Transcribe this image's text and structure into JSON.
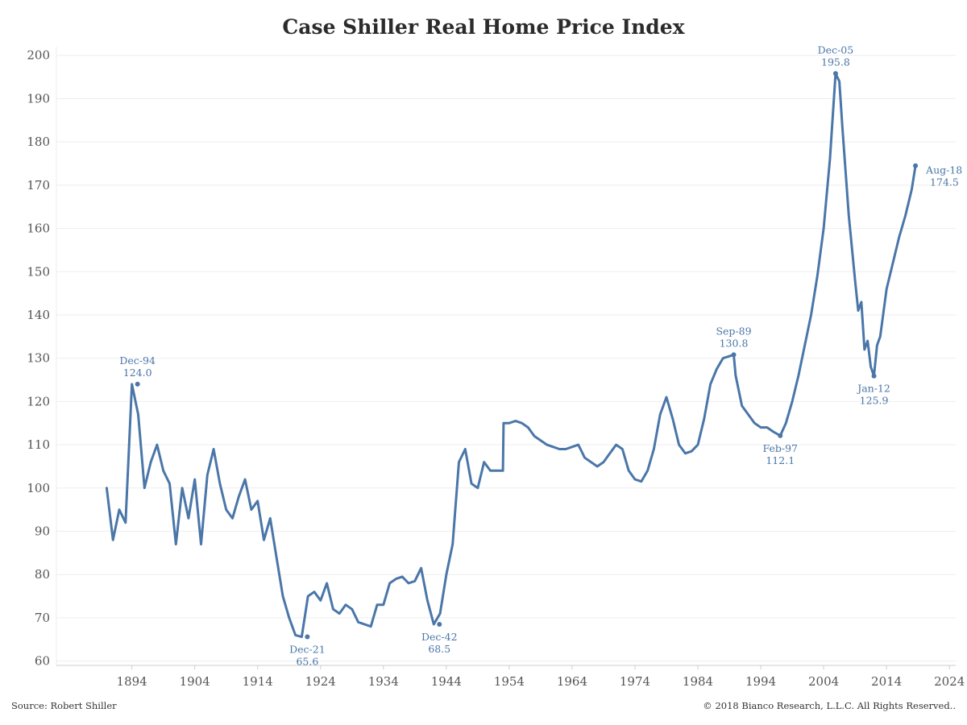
{
  "title": "Case Shiller Real Home Price Index",
  "source": "Source: Robert Shiller",
  "copyright": "© 2018 Bianco Research, L.L.C. All Rights Reserved..",
  "colors": {
    "line": "#4a76a8",
    "grid": "#eeeeee",
    "text": "#555555"
  },
  "chart_data": {
    "type": "line",
    "title": "Case Shiller Real Home Price Index",
    "xlabel": "",
    "ylabel": "",
    "xlim": [
      1882,
      2025
    ],
    "ylim": [
      59,
      202
    ],
    "grid": true,
    "legend": "none",
    "x_ticks": [
      1894,
      1904,
      1914,
      1924,
      1934,
      1944,
      1954,
      1964,
      1974,
      1984,
      1994,
      2004,
      2014,
      2024
    ],
    "y_ticks": [
      60,
      70,
      80,
      90,
      100,
      110,
      120,
      130,
      140,
      150,
      160,
      170,
      180,
      190,
      200
    ],
    "series": [
      {
        "x": [
          1890,
          1891,
          1892,
          1893,
          1894,
          1895,
          1896,
          1897,
          1898,
          1899,
          1900,
          1901,
          1902,
          1903,
          1904,
          1905,
          1906,
          1907,
          1908,
          1909,
          1910,
          1911,
          1912,
          1913,
          1914,
          1915,
          1916,
          1917,
          1918,
          1919,
          1920,
          1921,
          1922,
          1923,
          1924,
          1925,
          1926,
          1927,
          1928,
          1929,
          1930,
          1931,
          1932,
          1933,
          1934,
          1935,
          1936,
          1937,
          1938,
          1939,
          1940,
          1941,
          1942,
          1943,
          1944,
          1945,
          1946,
          1947,
          1948,
          1949,
          1950,
          1951,
          1952,
          1953,
          1953.1,
          1954,
          1955,
          1956,
          1957,
          1958,
          1959,
          1960,
          1961,
          1962,
          1963,
          1964,
          1965,
          1966,
          1967,
          1968,
          1969,
          1970,
          1971,
          1972,
          1973,
          1974,
          1975,
          1976,
          1977,
          1978,
          1979,
          1980,
          1981,
          1982,
          1983,
          1984,
          1985,
          1986,
          1987,
          1988,
          1989.7,
          1990,
          1991,
          1992,
          1993,
          1994,
          1995,
          1996,
          1997.1,
          1998,
          1999,
          2000,
          2001,
          2002,
          2003,
          2004,
          2005,
          2005.9,
          2006.5,
          2007,
          2008,
          2009,
          2009.5,
          2010,
          2010.5,
          2011,
          2011.5,
          2012,
          2012.5,
          2013,
          2014,
          2015,
          2016,
          2017,
          2018,
          2018.6
        ],
        "values": [
          100,
          88,
          95,
          92,
          124,
          117,
          100,
          106,
          110,
          104,
          101,
          87,
          100,
          93,
          102,
          87,
          103,
          109,
          101,
          95,
          93,
          98,
          102,
          95,
          97,
          88,
          93,
          84,
          75,
          70,
          66,
          65.6,
          75,
          76,
          74,
          78,
          72,
          71,
          73,
          72,
          69,
          68.5,
          68,
          73,
          73,
          78,
          79,
          79.5,
          78,
          78.5,
          81.5,
          74,
          68.5,
          71,
          80,
          87,
          106,
          109,
          101,
          100,
          106,
          104,
          104,
          104,
          115,
          115,
          115.5,
          115,
          114,
          112,
          111,
          110,
          109.5,
          109,
          109,
          109.5,
          110,
          107,
          106,
          105,
          106,
          108,
          110,
          109,
          104,
          102,
          101.5,
          104,
          109,
          117,
          121,
          116,
          110,
          108,
          108.5,
          110,
          116,
          124,
          127.5,
          130,
          130.8,
          126,
          119,
          117,
          115,
          114,
          114,
          113,
          112.1,
          115,
          120,
          126,
          133,
          140,
          149,
          160,
          176,
          195.8,
          194,
          183,
          163,
          148,
          141,
          143,
          132,
          134,
          128,
          125.9,
          133,
          135,
          146,
          152,
          158,
          163,
          169,
          174.5
        ]
      }
    ],
    "annotations": [
      {
        "date": "Dec-94",
        "value": "124.0",
        "x": 1894.9,
        "y": 124,
        "pos": "above"
      },
      {
        "date": "Dec-21",
        "value": "65.6",
        "x": 1921.9,
        "y": 65.6,
        "pos": "below"
      },
      {
        "date": "Dec-42",
        "value": "68.5",
        "x": 1942.9,
        "y": 68.5,
        "pos": "below"
      },
      {
        "date": "Sep-89",
        "value": "130.8",
        "x": 1989.7,
        "y": 130.8,
        "pos": "above"
      },
      {
        "date": "Feb-97",
        "value": "112.1",
        "x": 1997.1,
        "y": 112.1,
        "pos": "below"
      },
      {
        "date": "Dec-05",
        "value": "195.8",
        "x": 2005.9,
        "y": 195.8,
        "pos": "above"
      },
      {
        "date": "Jan-12",
        "value": "125.9",
        "x": 2012.0,
        "y": 125.9,
        "pos": "below"
      },
      {
        "date": "Aug-18",
        "value": "174.5",
        "x": 2018.6,
        "y": 174.5,
        "pos": "right"
      }
    ]
  }
}
